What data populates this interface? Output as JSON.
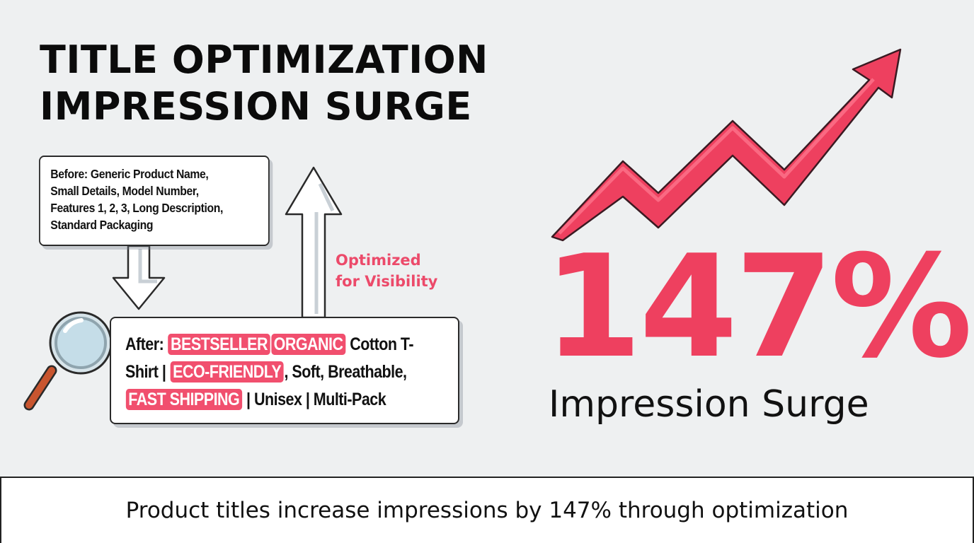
{
  "title": {
    "line1": "TITLE OPTIMIZATION",
    "line2": "IMPRESSION SURGE"
  },
  "before": {
    "lines": [
      "Before: Generic Product Name,",
      "Small Details, Model Number,",
      "Features 1, 2, 3, Long Description,",
      "Standard Packaging"
    ]
  },
  "after": {
    "prefix": "After:",
    "tag1": "BESTSELLER",
    "tag2": "ORGANIC",
    "text1": "Cotton T-",
    "text2": "Shirt |",
    "tag3": "ECO-FRIENDLY",
    "text3": ", Soft, Breathable,",
    "tag4": "FAST SHIPPING",
    "text4": "| Unisex | Multi-Pack"
  },
  "optimized_label": {
    "line1": "Optimized",
    "line2": "for Visibility"
  },
  "stat": {
    "value": "147%",
    "label": "Impression Surge"
  },
  "footer": {
    "caption": "Product titles increase impressions by 147% through optimization"
  },
  "colors": {
    "accent": "#ee405f",
    "highlight": "#f14f6e",
    "background": "#eef0f1"
  }
}
